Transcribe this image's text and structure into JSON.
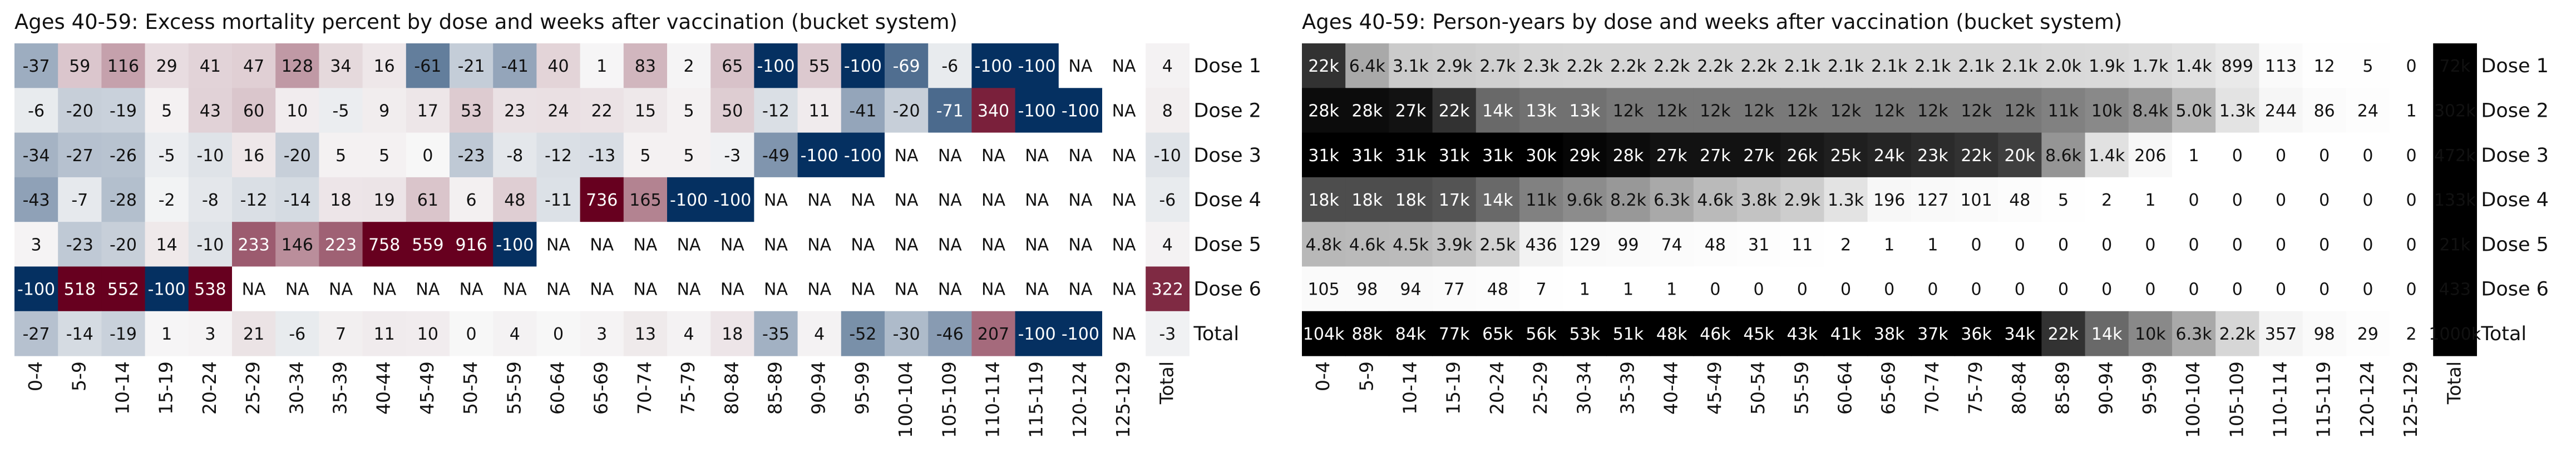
{
  "chart_data": [
    {
      "type": "heatmap",
      "title": "Ages 40-59: Excess mortality percent by dose and weeks after vaccination (bucket system)",
      "columns": [
        "0-4",
        "5-9",
        "10-14",
        "15-19",
        "20-24",
        "25-29",
        "30-34",
        "35-39",
        "40-44",
        "45-49",
        "50-54",
        "55-59",
        "60-64",
        "65-69",
        "70-74",
        "75-79",
        "80-84",
        "85-89",
        "90-94",
        "95-99",
        "100-104",
        "105-109",
        "110-114",
        "115-119",
        "120-124",
        "125-129",
        "Total"
      ],
      "rows": [
        "Dose 1",
        "Dose 2",
        "Dose 3",
        "Dose 4",
        "Dose 5",
        "Dose 6",
        "Total"
      ],
      "colorscale": {
        "type": "diverging",
        "negative": "#053061",
        "zero": "#f7f7f7",
        "positive": "#67001f",
        "min": -100,
        "max": 400
      },
      "values": [
        [
          "-37",
          "59",
          "116",
          "29",
          "41",
          "47",
          "128",
          "34",
          "16",
          "-61",
          "-21",
          "-41",
          "40",
          "1",
          "83",
          "2",
          "65",
          "-100",
          "55",
          "-100",
          "-69",
          "-6",
          "-100",
          "-100",
          "NA",
          "NA",
          "4"
        ],
        [
          "-6",
          "-20",
          "-19",
          "5",
          "43",
          "60",
          "10",
          "-5",
          "9",
          "17",
          "53",
          "23",
          "24",
          "22",
          "15",
          "5",
          "50",
          "-12",
          "11",
          "-41",
          "-20",
          "-71",
          "340",
          "-100",
          "-100",
          "NA",
          "8"
        ],
        [
          "-34",
          "-27",
          "-26",
          "-5",
          "-10",
          "16",
          "-20",
          "5",
          "5",
          "0",
          "-23",
          "-8",
          "-12",
          "-13",
          "5",
          "5",
          "-3",
          "-49",
          "-100",
          "-100",
          "NA",
          "NA",
          "NA",
          "NA",
          "NA",
          "NA",
          "-10"
        ],
        [
          "-43",
          "-7",
          "-28",
          "-2",
          "-8",
          "-12",
          "-14",
          "18",
          "19",
          "61",
          "6",
          "48",
          "-11",
          "736",
          "165",
          "-100",
          "-100",
          "NA",
          "NA",
          "NA",
          "NA",
          "NA",
          "NA",
          "NA",
          "NA",
          "NA",
          "-6"
        ],
        [
          "3",
          "-23",
          "-20",
          "14",
          "-10",
          "233",
          "146",
          "223",
          "758",
          "559",
          "916",
          "-100",
          "NA",
          "NA",
          "NA",
          "NA",
          "NA",
          "NA",
          "NA",
          "NA",
          "NA",
          "NA",
          "NA",
          "NA",
          "NA",
          "NA",
          "4"
        ],
        [
          "-100",
          "518",
          "552",
          "-100",
          "538",
          "NA",
          "NA",
          "NA",
          "NA",
          "NA",
          "NA",
          "NA",
          "NA",
          "NA",
          "NA",
          "NA",
          "NA",
          "NA",
          "NA",
          "NA",
          "NA",
          "NA",
          "NA",
          "NA",
          "NA",
          "NA",
          "322"
        ],
        [
          "-27",
          "-14",
          "-19",
          "1",
          "3",
          "21",
          "-6",
          "7",
          "11",
          "10",
          "0",
          "4",
          "0",
          "3",
          "13",
          "4",
          "18",
          "-35",
          "4",
          "-52",
          "-30",
          "-46",
          "207",
          "-100",
          "-100",
          "NA",
          "-3"
        ]
      ]
    },
    {
      "type": "heatmap",
      "title": "Ages 40-59: Person-years by dose and weeks after vaccination (bucket system)",
      "columns": [
        "0-4",
        "5-9",
        "10-14",
        "15-19",
        "20-24",
        "25-29",
        "30-34",
        "35-39",
        "40-44",
        "45-49",
        "50-54",
        "55-59",
        "60-64",
        "65-69",
        "70-74",
        "75-79",
        "80-84",
        "85-89",
        "90-94",
        "95-99",
        "100-104",
        "105-109",
        "110-114",
        "115-119",
        "120-124",
        "125-129",
        "Total"
      ],
      "rows": [
        "Dose 1",
        "Dose 2",
        "Dose 3",
        "Dose 4",
        "Dose 5",
        "Dose 6",
        "Total"
      ],
      "colorscale": {
        "type": "sequential",
        "low": "#ffffff",
        "high": "#000000",
        "min": 0,
        "max": 30000
      },
      "values": [
        [
          "22k",
          "6.4k",
          "3.1k",
          "2.9k",
          "2.7k",
          "2.3k",
          "2.2k",
          "2.2k",
          "2.2k",
          "2.2k",
          "2.2k",
          "2.1k",
          "2.1k",
          "2.1k",
          "2.1k",
          "2.1k",
          "2.1k",
          "2.0k",
          "1.9k",
          "1.7k",
          "1.4k",
          "899",
          "113",
          "12",
          "5",
          "0",
          "72k"
        ],
        [
          "28k",
          "28k",
          "27k",
          "22k",
          "14k",
          "13k",
          "13k",
          "12k",
          "12k",
          "12k",
          "12k",
          "12k",
          "12k",
          "12k",
          "12k",
          "12k",
          "12k",
          "11k",
          "10k",
          "8.4k",
          "5.0k",
          "1.3k",
          "244",
          "86",
          "24",
          "1",
          "302k"
        ],
        [
          "31k",
          "31k",
          "31k",
          "31k",
          "31k",
          "30k",
          "29k",
          "28k",
          "27k",
          "27k",
          "27k",
          "26k",
          "25k",
          "24k",
          "23k",
          "22k",
          "20k",
          "8.6k",
          "1.4k",
          "206",
          "1",
          "0",
          "0",
          "0",
          "0",
          "0",
          "472k"
        ],
        [
          "18k",
          "18k",
          "18k",
          "17k",
          "14k",
          "11k",
          "9.6k",
          "8.2k",
          "6.3k",
          "4.6k",
          "3.8k",
          "2.9k",
          "1.3k",
          "196",
          "127",
          "101",
          "48",
          "5",
          "2",
          "1",
          "0",
          "0",
          "0",
          "0",
          "0",
          "0",
          "133k"
        ],
        [
          "4.8k",
          "4.6k",
          "4.5k",
          "3.9k",
          "2.5k",
          "436",
          "129",
          "99",
          "74",
          "48",
          "31",
          "11",
          "2",
          "1",
          "1",
          "0",
          "0",
          "0",
          "0",
          "0",
          "0",
          "0",
          "0",
          "0",
          "0",
          "0",
          "21k"
        ],
        [
          "105",
          "98",
          "94",
          "77",
          "48",
          "7",
          "1",
          "1",
          "1",
          "0",
          "0",
          "0",
          "0",
          "0",
          "0",
          "0",
          "0",
          "0",
          "0",
          "0",
          "0",
          "0",
          "0",
          "0",
          "0",
          "0",
          "433"
        ],
        [
          "104k",
          "88k",
          "84k",
          "77k",
          "65k",
          "56k",
          "53k",
          "51k",
          "48k",
          "46k",
          "45k",
          "43k",
          "41k",
          "38k",
          "37k",
          "36k",
          "34k",
          "22k",
          "14k",
          "10k",
          "6.3k",
          "2.2k",
          "357",
          "98",
          "29",
          "2",
          "1000k"
        ]
      ]
    }
  ]
}
